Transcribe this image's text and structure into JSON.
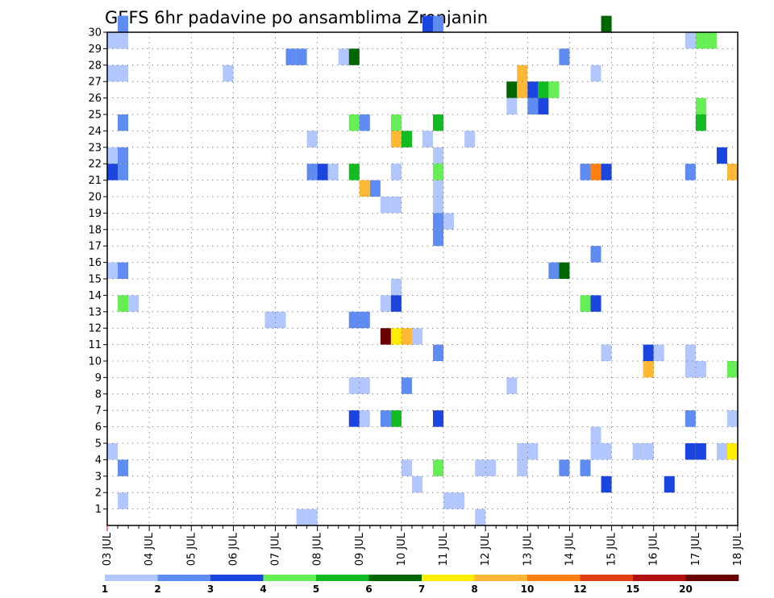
{
  "chart_data": {
    "type": "heatmap",
    "title": "GEFS 6hr padavine po ansamblima Zrenjanin",
    "xlabel": "",
    "ylabel": "",
    "x_tick_labels": [
      "03 JUL",
      "04 JUL",
      "05 JUL",
      "06 JUL",
      "07 JUL",
      "08 JUL",
      "09 JUL",
      "10 JUL",
      "11 JUL",
      "12 JUL",
      "13 JUL",
      "14 JUL",
      "15 JUL",
      "16 JUL",
      "17 JUL",
      "18 JUL"
    ],
    "x_range_days": [
      0,
      15
    ],
    "time_step_hours": 6,
    "y_tick_labels": [
      "1",
      "2",
      "3",
      "4",
      "5",
      "6",
      "7",
      "8",
      "9",
      "10",
      "11",
      "12",
      "13",
      "14",
      "15",
      "16",
      "17",
      "18",
      "19",
      "20",
      "21",
      "22",
      "23",
      "24",
      "25",
      "26",
      "27",
      "28",
      "29",
      "30"
    ],
    "y_range": [
      0,
      30
    ],
    "grid": "dotted",
    "color_levels": [
      "1",
      "2",
      "3",
      "4",
      "5",
      "6",
      "7",
      "8",
      "10",
      "12",
      "15",
      "20"
    ],
    "colors": [
      "#b3c7ff",
      "#5f8cf2",
      "#1a45de",
      "#66ee55",
      "#11bb22",
      "#006600",
      "#ffee00",
      "#ffb833",
      "#ff7f10",
      "#e04010",
      "#b01010",
      "#6a0000"
    ],
    "legend_position": "bottom",
    "cells": [
      [
        1,
        30,
        1
      ],
      [
        30,
        30,
        2
      ],
      [
        31,
        30,
        1
      ],
      [
        47,
        30,
        5
      ],
      [
        0,
        29,
        0
      ],
      [
        1,
        29,
        0
      ],
      [
        55,
        29,
        0
      ],
      [
        56,
        29,
        3
      ],
      [
        57,
        29,
        3
      ],
      [
        17,
        28,
        1
      ],
      [
        18,
        28,
        1
      ],
      [
        22,
        28,
        0
      ],
      [
        23,
        28,
        5
      ],
      [
        43,
        28,
        1
      ],
      [
        0,
        27,
        0
      ],
      [
        1,
        27,
        0
      ],
      [
        11,
        27,
        0
      ],
      [
        39,
        27,
        7
      ],
      [
        46,
        27,
        0
      ],
      [
        38,
        26,
        5
      ],
      [
        39,
        26,
        7
      ],
      [
        40,
        26,
        2
      ],
      [
        41,
        26,
        4
      ],
      [
        42,
        26,
        3
      ],
      [
        38,
        25,
        0
      ],
      [
        40,
        25,
        1
      ],
      [
        41,
        25,
        2
      ],
      [
        56,
        25,
        3
      ],
      [
        1,
        24,
        1
      ],
      [
        23,
        24,
        3
      ],
      [
        24,
        24,
        1
      ],
      [
        27,
        24,
        3
      ],
      [
        31,
        24,
        4
      ],
      [
        56,
        24,
        4
      ],
      [
        19,
        23,
        0
      ],
      [
        27,
        23,
        7
      ],
      [
        28,
        23,
        4
      ],
      [
        30,
        23,
        0
      ],
      [
        34,
        23,
        0
      ],
      [
        0,
        22,
        0
      ],
      [
        1,
        22,
        1
      ],
      [
        31,
        22,
        0
      ],
      [
        58,
        22,
        2
      ],
      [
        0,
        21,
        2
      ],
      [
        1,
        21,
        1
      ],
      [
        19,
        21,
        1
      ],
      [
        20,
        21,
        2
      ],
      [
        21,
        21,
        0
      ],
      [
        23,
        21,
        4
      ],
      [
        27,
        21,
        0
      ],
      [
        31,
        21,
        3
      ],
      [
        45,
        21,
        1
      ],
      [
        46,
        21,
        8
      ],
      [
        47,
        21,
        2
      ],
      [
        55,
        21,
        1
      ],
      [
        59,
        21,
        7
      ],
      [
        24,
        20,
        7
      ],
      [
        25,
        20,
        1
      ],
      [
        31,
        20,
        0
      ],
      [
        26,
        19,
        0
      ],
      [
        27,
        19,
        0
      ],
      [
        31,
        19,
        0
      ],
      [
        31,
        18,
        1
      ],
      [
        32,
        18,
        0
      ],
      [
        31,
        17,
        1
      ],
      [
        46,
        16,
        1
      ],
      [
        0,
        15,
        0
      ],
      [
        1,
        15,
        1
      ],
      [
        42,
        15,
        1
      ],
      [
        43,
        15,
        5
      ],
      [
        27,
        14,
        0
      ],
      [
        1,
        13,
        3
      ],
      [
        2,
        13,
        0
      ],
      [
        26,
        13,
        0
      ],
      [
        27,
        13,
        2
      ],
      [
        45,
        13,
        3
      ],
      [
        46,
        13,
        2
      ],
      [
        15,
        12,
        0
      ],
      [
        16,
        12,
        0
      ],
      [
        23,
        12,
        1
      ],
      [
        24,
        12,
        1
      ],
      [
        26,
        11,
        11
      ],
      [
        27,
        11,
        6
      ],
      [
        28,
        11,
        7
      ],
      [
        29,
        11,
        0
      ],
      [
        31,
        10,
        1
      ],
      [
        47,
        10,
        0
      ],
      [
        51,
        10,
        2
      ],
      [
        52,
        10,
        0
      ],
      [
        55,
        10,
        0
      ],
      [
        51,
        9,
        7
      ],
      [
        55,
        9,
        0
      ],
      [
        56,
        9,
        0
      ],
      [
        59,
        9,
        3
      ],
      [
        23,
        8,
        0
      ],
      [
        24,
        8,
        0
      ],
      [
        28,
        8,
        1
      ],
      [
        38,
        8,
        0
      ],
      [
        23,
        6,
        2
      ],
      [
        24,
        6,
        0
      ],
      [
        26,
        6,
        1
      ],
      [
        27,
        6,
        4
      ],
      [
        31,
        6,
        2
      ],
      [
        55,
        6,
        1
      ],
      [
        59,
        6,
        0
      ],
      [
        46,
        5,
        0
      ],
      [
        0,
        4,
        0
      ],
      [
        39,
        4,
        0
      ],
      [
        40,
        4,
        0
      ],
      [
        46,
        4,
        0
      ],
      [
        47,
        4,
        0
      ],
      [
        50,
        4,
        0
      ],
      [
        51,
        4,
        0
      ],
      [
        55,
        4,
        2
      ],
      [
        56,
        4,
        2
      ],
      [
        58,
        4,
        0
      ],
      [
        59,
        4,
        6
      ],
      [
        1,
        3,
        1
      ],
      [
        28,
        3,
        0
      ],
      [
        31,
        3,
        3
      ],
      [
        35,
        3,
        0
      ],
      [
        36,
        3,
        0
      ],
      [
        39,
        3,
        0
      ],
      [
        43,
        3,
        1
      ],
      [
        45,
        3,
        1
      ],
      [
        29,
        2,
        0
      ],
      [
        47,
        2,
        2
      ],
      [
        53,
        2,
        2
      ],
      [
        1,
        1,
        0
      ],
      [
        32,
        1,
        0
      ],
      [
        33,
        1,
        0
      ],
      [
        18,
        0,
        0
      ],
      [
        19,
        0,
        0
      ],
      [
        35,
        0,
        0
      ]
    ]
  }
}
